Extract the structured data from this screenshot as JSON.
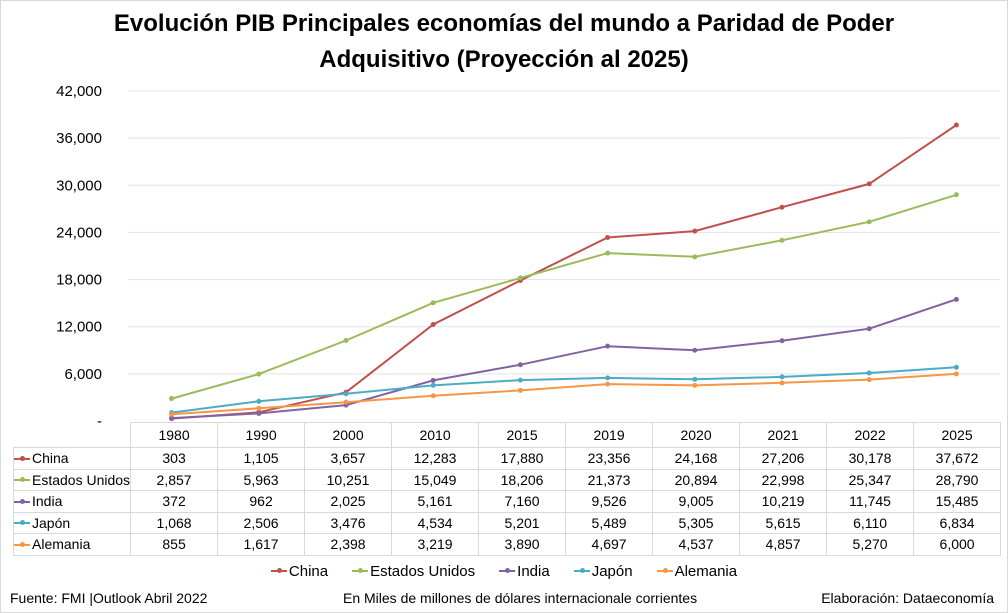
{
  "chart_data": {
    "type": "line",
    "title_line1": "Evolución PIB Principales economías del mundo a Paridad de Poder",
    "title_line2": "Adquisitivo (Proyección al 2025)",
    "categories": [
      "1980",
      "1990",
      "2000",
      "2010",
      "2015",
      "2019",
      "2020",
      "2021",
      "2022",
      "2025"
    ],
    "ylim": [
      0,
      42000
    ],
    "yticks": [
      0,
      6000,
      12000,
      18000,
      24000,
      30000,
      36000,
      42000
    ],
    "ytick_labels": [
      "-",
      "6,000",
      "12,000",
      "18,000",
      "24,000",
      "30,000",
      "36,000",
      "42,000"
    ],
    "grid": true,
    "series": [
      {
        "name": "China",
        "color": "#c0504d",
        "values": [
          303,
          1105,
          3657,
          12283,
          17880,
          23356,
          24168,
          27206,
          30178,
          37672
        ],
        "labels": [
          "303",
          "1,105",
          "3,657",
          "12,283",
          "17,880",
          "23,356",
          "24,168",
          "27,206",
          "30,178",
          "37,672"
        ]
      },
      {
        "name": "Estados Unidos",
        "color": "#9bbb59",
        "values": [
          2857,
          5963,
          10251,
          15049,
          18206,
          21373,
          20894,
          22998,
          25347,
          28790
        ],
        "labels": [
          "2,857",
          "5,963",
          "10,251",
          "15,049",
          "18,206",
          "21,373",
          "20,894",
          "22,998",
          "25,347",
          "28,790"
        ]
      },
      {
        "name": "India",
        "color": "#8064a2",
        "values": [
          372,
          962,
          2025,
          5161,
          7160,
          9526,
          9005,
          10219,
          11745,
          15485
        ],
        "labels": [
          "372",
          "962",
          "2,025",
          "5,161",
          "7,160",
          "9,526",
          "9,005",
          "10,219",
          "11,745",
          "15,485"
        ]
      },
      {
        "name": "Japón",
        "color": "#4bacc6",
        "values": [
          1068,
          2506,
          3476,
          4534,
          5201,
          5489,
          5305,
          5615,
          6110,
          6834
        ],
        "labels": [
          "1,068",
          "2,506",
          "3,476",
          "4,534",
          "5,201",
          "5,489",
          "5,305",
          "5,615",
          "6,110",
          "6,834"
        ]
      },
      {
        "name": "Alemania",
        "color": "#f79646",
        "values": [
          855,
          1617,
          2398,
          3219,
          3890,
          4697,
          4537,
          4857,
          5270,
          6000
        ],
        "labels": [
          "855",
          "1,617",
          "2,398",
          "3,219",
          "3,890",
          "4,697",
          "4,537",
          "4,857",
          "5,270",
          "6,000"
        ]
      }
    ],
    "legend_position": "bottom",
    "data_table": true
  },
  "footer": {
    "source": "Fuente: FMI |Outlook Abril 2022",
    "units": "En Miles de millones de dólares internacionale corrientes",
    "credit": "Elaboración: Dataeconomía"
  }
}
